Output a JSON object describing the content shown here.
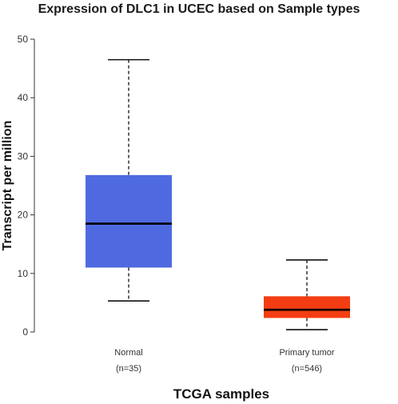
{
  "chart_data": {
    "type": "box",
    "title": "Expression of DLC1 in UCEC based on Sample types",
    "xlabel": "TCGA samples",
    "ylabel": "Transcript per million",
    "ylim": [
      0,
      50
    ],
    "yticks": [
      0,
      10,
      20,
      30,
      40,
      50
    ],
    "grid": false,
    "legend": "none",
    "categories": [
      {
        "label": "Normal",
        "n_label": "(n=35)",
        "color": "#4f6ae0",
        "whisker_low": 5.3,
        "q1": 11.0,
        "median": 18.5,
        "q3": 26.8,
        "whisker_high": 46.5
      },
      {
        "label": "Primary tumor",
        "n_label": "(n=546)",
        "color": "#f43d12",
        "whisker_low": 0.4,
        "q1": 2.4,
        "median": 3.8,
        "q3": 6.1,
        "whisker_high": 12.3
      }
    ]
  }
}
